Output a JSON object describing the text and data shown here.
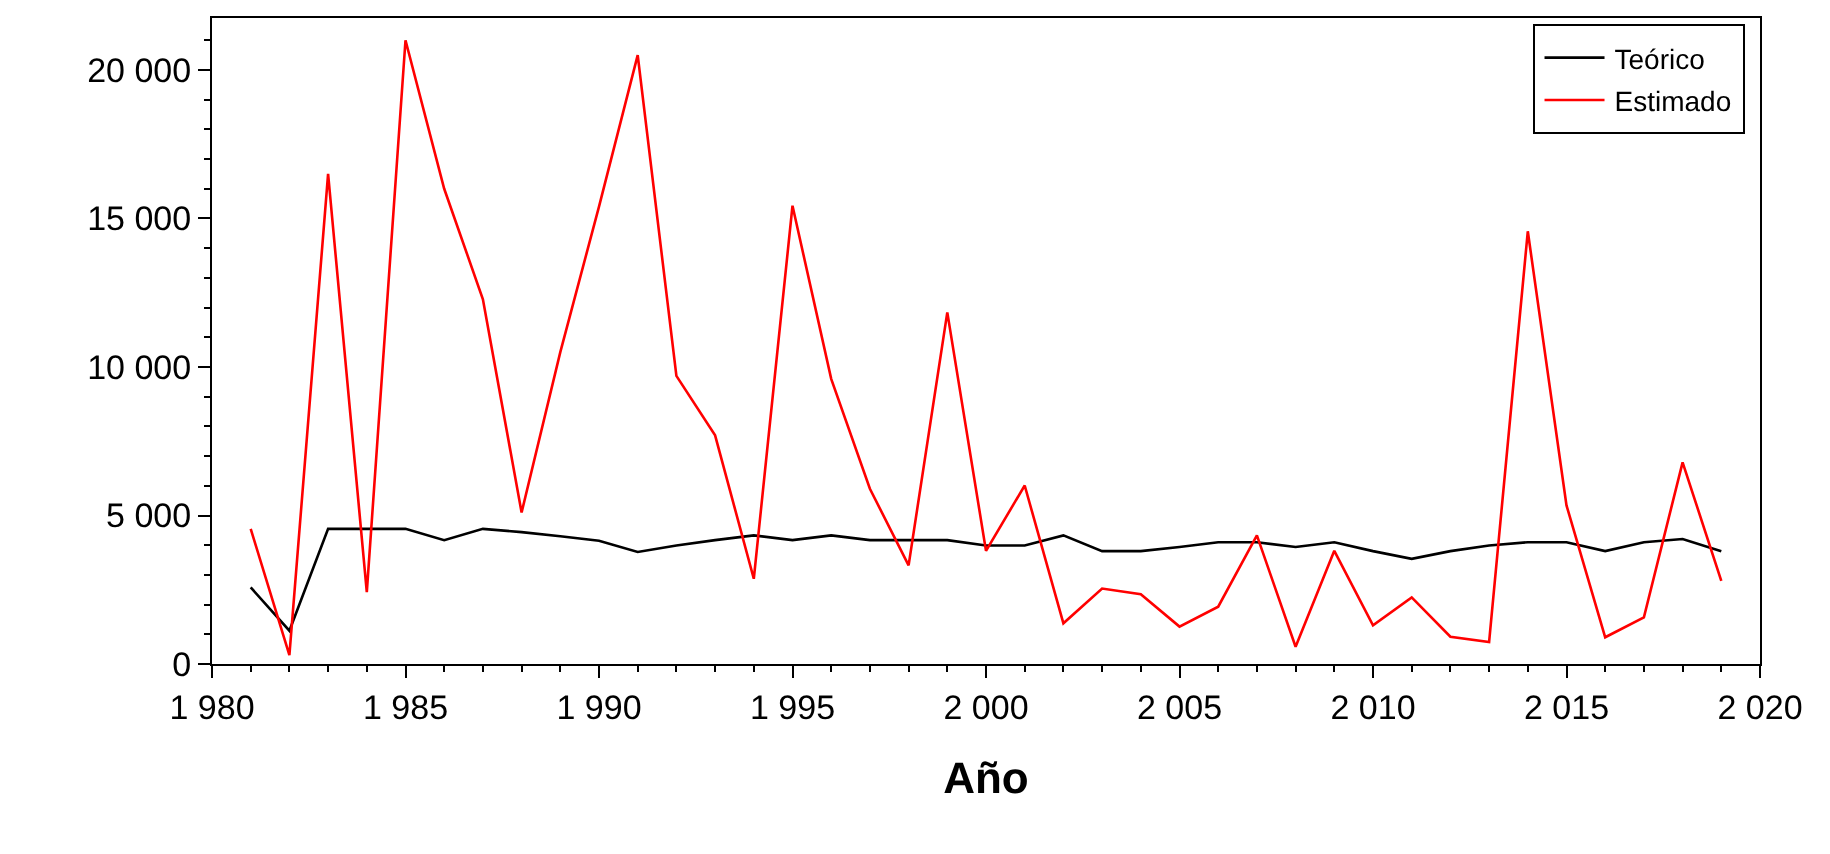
{
  "chart_data": {
    "type": "line",
    "xlabel": "Año",
    "x": [
      1981,
      1982,
      1983,
      1984,
      1985,
      1986,
      1987,
      1988,
      1989,
      1990,
      1991,
      1992,
      1993,
      1994,
      1995,
      1996,
      1997,
      1998,
      1999,
      2000,
      2001,
      2002,
      2003,
      2004,
      2005,
      2006,
      2007,
      2008,
      2009,
      2010,
      2011,
      2012,
      2013,
      2014,
      2015,
      2016,
      2017,
      2018,
      2019
    ],
    "series": [
      {
        "name": "Teórico",
        "color": "#000000",
        "values": [
          2580,
          1120,
          4550,
          4550,
          4550,
          4170,
          4550,
          4440,
          4300,
          4150,
          3770,
          3990,
          4170,
          4330,
          4170,
          4330,
          4170,
          4170,
          4170,
          3990,
          3990,
          4330,
          3800,
          3800,
          3940,
          4100,
          4100,
          3940,
          4100,
          3800,
          3540,
          3800,
          3990,
          4100,
          4100,
          3800,
          4100,
          4210,
          3800
        ]
      },
      {
        "name": "Estimado",
        "color": "#ff0000",
        "values": [
          4550,
          300,
          16500,
          2420,
          21000,
          16000,
          12280,
          5100,
          10500,
          15400,
          20500,
          9700,
          7700,
          2870,
          15430,
          9600,
          5900,
          3320,
          11840,
          3810,
          6010,
          1370,
          2540,
          2350,
          1260,
          1930,
          4330,
          580,
          3810,
          1300,
          2240,
          920,
          740,
          14570,
          5340,
          900,
          1570,
          6790,
          2800
        ]
      }
    ],
    "xlim": [
      1980,
      2020
    ],
    "xticks": [
      {
        "value": 1980,
        "label": "1 980"
      },
      {
        "value": 1985,
        "label": "1 985"
      },
      {
        "value": 1990,
        "label": "1 990"
      },
      {
        "value": 1995,
        "label": "1 995"
      },
      {
        "value": 2000,
        "label": "2 000"
      },
      {
        "value": 2005,
        "label": "2 005"
      },
      {
        "value": 2010,
        "label": "2 010"
      },
      {
        "value": 2015,
        "label": "2 015"
      },
      {
        "value": 2020,
        "label": "2 020"
      }
    ],
    "ylim": [
      0,
      21750
    ],
    "yticks": [
      0,
      {
        "value": 5000,
        "label": "5 000"
      },
      {
        "value": 10000,
        "label": "10 000"
      },
      {
        "value": 15000,
        "label": "15 000"
      },
      {
        "value": 20000,
        "label": "20 000"
      }
    ],
    "legend": "top right",
    "line_style": "solid",
    "marker": "none"
  }
}
